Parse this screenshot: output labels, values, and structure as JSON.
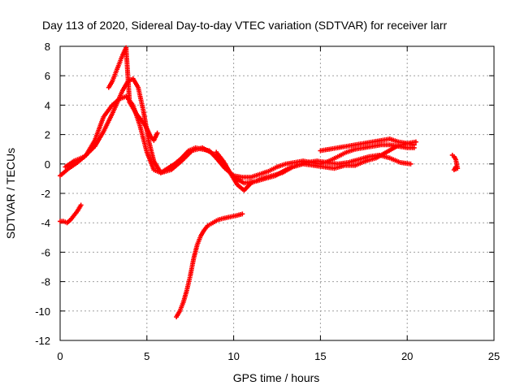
{
  "chart_data": {
    "type": "scatter",
    "title": "Day 113 of 2020, Sidereal Day-to-day VTEC variation (SDTVAR) for receiver larr",
    "xlabel": "GPS time / hours",
    "ylabel": "SDTVAR / TECUs",
    "xlim": [
      0,
      25
    ],
    "ylim": [
      -12,
      8
    ],
    "xticks": [
      0,
      5,
      10,
      15,
      20,
      25
    ],
    "yticks": [
      -12,
      -10,
      -8,
      -6,
      -4,
      -2,
      0,
      2,
      4,
      6,
      8
    ],
    "grid": true,
    "marker": "+",
    "color": "#ff0000",
    "series": [
      {
        "name": "trace-main-a",
        "x": [
          0.0,
          0.5,
          1.0,
          1.5,
          2.0,
          2.5,
          3.0,
          3.4,
          3.8,
          4.2,
          4.6,
          5.0,
          5.4,
          5.8,
          6.2,
          6.6,
          7.0,
          7.4,
          7.8,
          8.2,
          8.6,
          9.0,
          9.5,
          10.0,
          10.5,
          11.0,
          11.5,
          12.0,
          12.5,
          13.0,
          13.5,
          14.0,
          14.5,
          15.0,
          15.5,
          16.0,
          16.5,
          17.0,
          17.5,
          18.0,
          18.5,
          19.0,
          19.5,
          20.0,
          20.4
        ],
        "y": [
          -0.8,
          -0.3,
          0.1,
          0.6,
          1.6,
          3.2,
          4.0,
          4.4,
          4.6,
          4.0,
          2.6,
          0.8,
          -0.4,
          -0.6,
          -0.3,
          0.0,
          0.4,
          0.9,
          1.1,
          1.0,
          0.9,
          0.4,
          -0.3,
          -0.8,
          -0.9,
          -0.9,
          -0.7,
          -0.5,
          -0.2,
          0.0,
          0.1,
          0.2,
          0.1,
          0.0,
          0.2,
          0.5,
          0.8,
          1.0,
          1.1,
          1.2,
          1.3,
          1.3,
          1.2,
          1.1,
          1.1
        ]
      },
      {
        "name": "trace-main-b",
        "x": [
          0.3,
          0.8,
          1.4,
          2.0,
          2.5,
          3.0,
          3.3,
          3.6,
          3.9,
          4.2,
          4.5,
          4.8,
          5.1,
          5.4,
          5.8,
          6.4,
          7.0,
          7.6,
          8.2,
          8.8,
          9.4,
          10.0,
          10.6,
          11.2,
          11.8,
          12.4,
          13.0,
          13.6,
          14.2,
          14.8,
          15.4,
          16.0,
          16.6,
          17.2,
          17.8,
          18.4,
          19.0,
          19.6,
          20.2
        ],
        "y": [
          -0.2,
          0.2,
          0.5,
          1.2,
          2.2,
          3.4,
          4.2,
          5.0,
          5.6,
          5.8,
          5.2,
          3.6,
          1.6,
          0.2,
          -0.6,
          -0.4,
          0.2,
          0.9,
          1.1,
          0.7,
          0.0,
          -0.9,
          -1.3,
          -1.2,
          -1.0,
          -0.8,
          -0.4,
          -0.1,
          0.1,
          0.2,
          0.1,
          0.0,
          0.1,
          0.3,
          0.5,
          0.6,
          0.4,
          0.1,
          0.0
        ]
      },
      {
        "name": "trace-main-c",
        "x": [
          2.8,
          3.0,
          3.2,
          3.4,
          3.6,
          3.8,
          4.0,
          4.2,
          4.4,
          4.6,
          4.8,
          5.0,
          5.2,
          5.4,
          5.6
        ],
        "y": [
          5.2,
          5.6,
          6.2,
          6.8,
          7.4,
          7.9,
          4.2,
          3.8,
          3.4,
          3.1,
          2.8,
          2.4,
          1.9,
          1.6,
          2.1
        ]
      },
      {
        "name": "trace-main-d",
        "x": [
          9.0,
          9.4,
          9.8,
          10.2,
          10.6,
          11.0,
          11.6,
          12.2,
          12.8,
          13.4,
          14.0,
          14.6,
          15.2,
          15.8,
          16.4,
          17.0,
          17.6,
          18.2,
          18.8,
          19.4,
          20.0,
          20.5
        ],
        "y": [
          0.8,
          0.2,
          -0.6,
          -1.4,
          -1.8,
          -1.3,
          -1.0,
          -0.8,
          -0.6,
          -0.2,
          0.0,
          -0.1,
          -0.2,
          -0.3,
          -0.1,
          -0.1,
          0.2,
          0.4,
          0.8,
          1.2,
          1.4,
          1.5
        ]
      },
      {
        "name": "trace-side-upper",
        "x": [
          15.0,
          15.5,
          16.0,
          16.5,
          17.0,
          17.5,
          18.0,
          18.5,
          19.0,
          19.5,
          20.0,
          20.4
        ],
        "y": [
          0.9,
          1.0,
          1.1,
          1.2,
          1.3,
          1.4,
          1.5,
          1.6,
          1.7,
          1.5,
          1.4,
          1.3
        ]
      },
      {
        "name": "trace-short-lower",
        "x": [
          0.0,
          0.2,
          0.4,
          0.6,
          0.8,
          1.0,
          1.2
        ],
        "y": [
          -3.9,
          -3.9,
          -4.0,
          -3.8,
          -3.5,
          -3.2,
          -2.8
        ]
      },
      {
        "name": "trace-deep-dip",
        "x": [
          6.7,
          6.9,
          7.1,
          7.3,
          7.5,
          7.7,
          7.9,
          8.1,
          8.3,
          8.5,
          8.8,
          9.1,
          9.4,
          9.8,
          10.2,
          10.5
        ],
        "y": [
          -10.4,
          -10.0,
          -9.4,
          -8.6,
          -7.6,
          -6.4,
          -5.5,
          -4.9,
          -4.5,
          -4.2,
          -4.0,
          -3.8,
          -3.7,
          -3.6,
          -3.5,
          -3.4
        ]
      },
      {
        "name": "trace-late-point",
        "x": [
          22.6,
          22.7,
          22.8,
          22.9,
          22.7,
          22.8
        ],
        "y": [
          0.6,
          0.5,
          0.3,
          -0.3,
          -0.4,
          -0.2
        ]
      }
    ]
  }
}
